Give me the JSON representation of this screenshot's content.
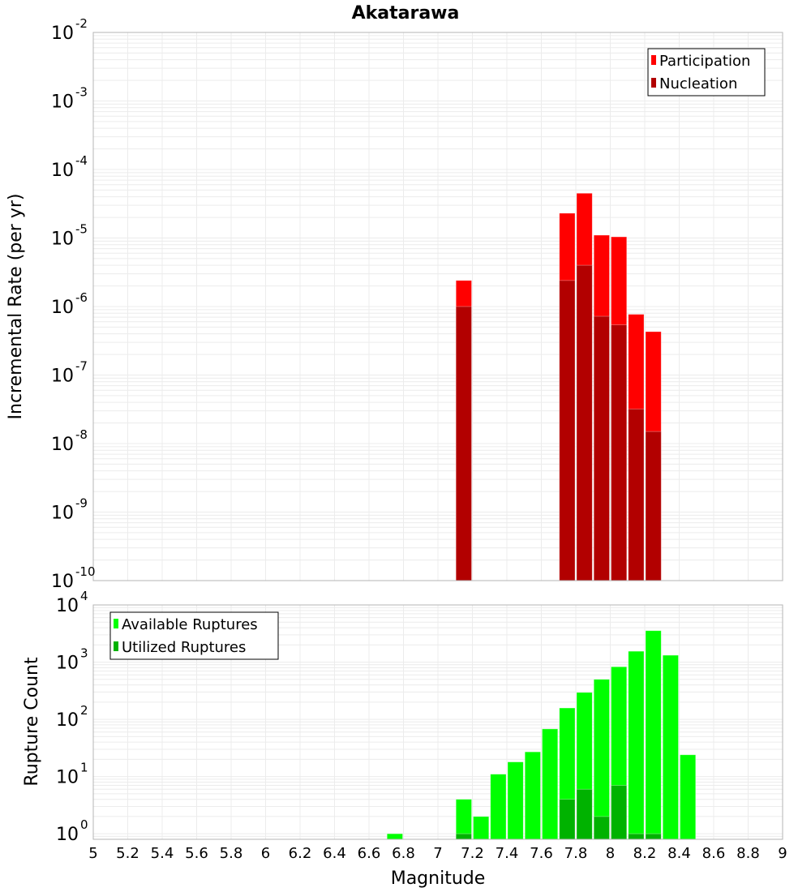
{
  "title": "Akatarawa",
  "colors": {
    "participation": "#ff0000",
    "nucleation": "#b20000",
    "available": "#00ff00",
    "utilized": "#00b200",
    "grid": "#ececec",
    "frame": "#b4b4b4"
  },
  "chart_data": [
    {
      "type": "bar",
      "title": "Akatarawa",
      "xlabel": "",
      "ylabel": "Incremental Rate (per yr)",
      "yscale": "log",
      "ylim": [
        1e-10,
        0.01
      ],
      "xlim": [
        5,
        9
      ],
      "grid": true,
      "legend_position": "top-right",
      "ytick_labels": [
        {
          "base": "10",
          "exp": "-10",
          "value": 1e-10
        },
        {
          "base": "10",
          "exp": "-9",
          "value": 1e-09
        },
        {
          "base": "10",
          "exp": "-8",
          "value": 1e-08
        },
        {
          "base": "10",
          "exp": "-7",
          "value": 1e-07
        },
        {
          "base": "10",
          "exp": "-6",
          "value": 1e-06
        },
        {
          "base": "10",
          "exp": "-5",
          "value": 1e-05
        },
        {
          "base": "10",
          "exp": "-4",
          "value": 0.0001
        },
        {
          "base": "10",
          "exp": "-3",
          "value": 0.001
        },
        {
          "base": "10",
          "exp": "-2",
          "value": 0.01
        }
      ],
      "bin_width": 0.1,
      "x": [
        7.15,
        7.75,
        7.85,
        7.95,
        8.05,
        8.15,
        8.25
      ],
      "series": [
        {
          "name": "Participation",
          "color": "#ff0000",
          "values": [
            2.4e-06,
            2.3e-05,
            4.5e-05,
            1.1e-05,
            1.04e-05,
            7.7e-07,
            4.3e-07
          ]
        },
        {
          "name": "Nucleation",
          "color": "#b20000",
          "values": [
            1e-06,
            2.4e-06,
            4e-06,
            7.2e-07,
            5.4e-07,
            3.2e-08,
            1.5e-08
          ]
        }
      ]
    },
    {
      "type": "bar",
      "title": "",
      "xlabel": "Magnitude",
      "ylabel": "Rupture Count",
      "yscale": "log",
      "ylim": [
        0.8,
        10000
      ],
      "xlim": [
        5,
        9
      ],
      "grid": true,
      "legend_position": "top-left",
      "ytick_labels": [
        {
          "base": "10",
          "exp": "0",
          "value": 1
        },
        {
          "base": "10",
          "exp": "1",
          "value": 10
        },
        {
          "base": "10",
          "exp": "2",
          "value": 100
        },
        {
          "base": "10",
          "exp": "3",
          "value": 1000
        },
        {
          "base": "10",
          "exp": "4",
          "value": 10000
        }
      ],
      "xtick_labels": [
        "5",
        "5.2",
        "5.4",
        "5.6",
        "5.8",
        "6",
        "6.2",
        "6.4",
        "6.6",
        "6.8",
        "7",
        "7.2",
        "7.4",
        "7.6",
        "7.8",
        "8",
        "8.2",
        "8.4",
        "8.6",
        "8.8",
        "9"
      ],
      "bin_width": 0.1,
      "x": [
        6.75,
        7.15,
        7.25,
        7.35,
        7.45,
        7.55,
        7.65,
        7.75,
        7.85,
        7.95,
        8.05,
        8.15,
        8.25,
        8.35,
        8.45
      ],
      "series": [
        {
          "name": "Available Ruptures",
          "color": "#00ff00",
          "values": [
            1,
            4,
            2,
            11,
            18,
            27,
            68,
            158,
            295,
            500,
            830,
            1550,
            3550,
            1320,
            24
          ]
        },
        {
          "name": "Utilized Ruptures",
          "color": "#00b200",
          "values": [
            0,
            1,
            0,
            0,
            0,
            0,
            0,
            4,
            6,
            2,
            7,
            1,
            1,
            0,
            0
          ]
        }
      ]
    }
  ]
}
